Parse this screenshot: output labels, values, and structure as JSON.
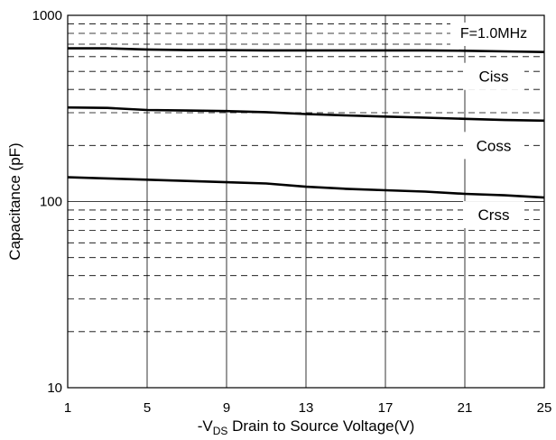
{
  "chart_data": {
    "type": "line",
    "x_axis": {
      "label_prefix": "-V",
      "label_subscript": "DS",
      "label_rest": " Drain to Source Voltage(V)",
      "range": [
        1,
        25
      ],
      "ticks": [
        1,
        5,
        9,
        13,
        17,
        21,
        25
      ],
      "tick_labels": [
        "1",
        "5",
        "9",
        "13",
        "17",
        "21",
        "25"
      ]
    },
    "y_axis": {
      "label": "Capacitance (pF)",
      "scale": "log",
      "range": [
        10,
        1000
      ],
      "tick_labels": [
        "10",
        "100",
        "1000"
      ]
    },
    "grid": true,
    "annotation": "F=1.0MHz",
    "series": [
      {
        "name": "Ciss",
        "x": [
          1,
          3,
          5,
          7,
          9,
          11,
          13,
          15,
          17,
          19,
          21,
          23,
          25
        ],
        "y": [
          665,
          665,
          655,
          650,
          650,
          648,
          648,
          648,
          648,
          648,
          645,
          640,
          635
        ]
      },
      {
        "name": "Coss",
        "x": [
          1,
          3,
          5,
          7,
          9,
          11,
          13,
          15,
          17,
          19,
          21,
          23,
          25
        ],
        "y": [
          320,
          318,
          310,
          308,
          306,
          302,
          295,
          290,
          286,
          282,
          278,
          274,
          272
        ]
      },
      {
        "name": "Crss",
        "x": [
          1,
          3,
          5,
          7,
          9,
          11,
          13,
          15,
          17,
          19,
          21,
          23,
          25
        ],
        "y": [
          135,
          133,
          131,
          129,
          127,
          125,
          120,
          117,
          115,
          113,
          110,
          108,
          105
        ]
      }
    ]
  }
}
